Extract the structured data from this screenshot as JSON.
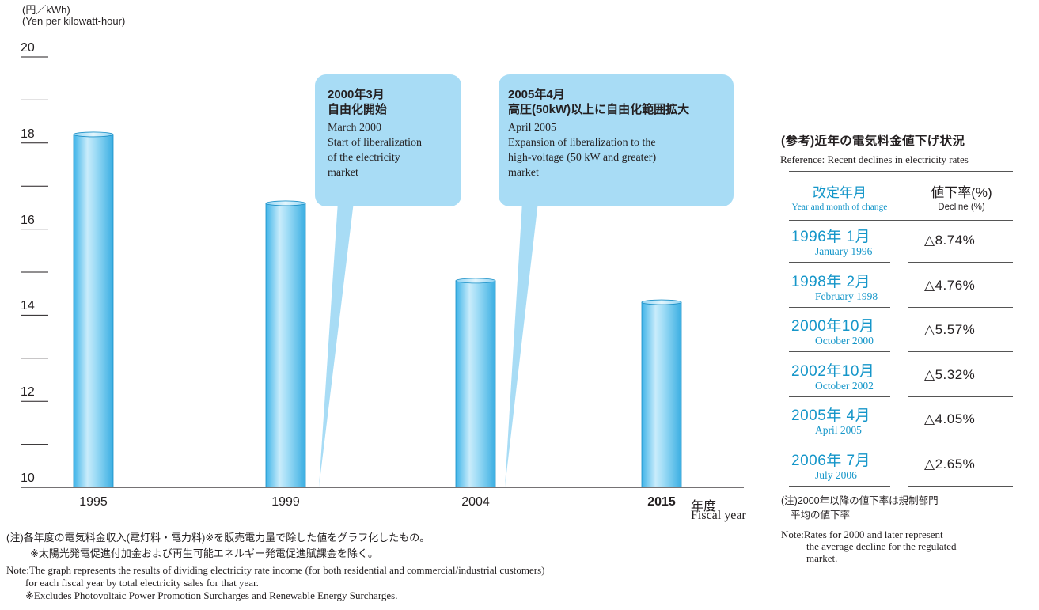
{
  "chart_data": {
    "type": "bar",
    "ylabel_jp": "(円／kWh)",
    "ylabel_en": "(Yen per kilowatt-hour)",
    "ylim": [
      10,
      20
    ],
    "yticks": [
      "20",
      "18",
      "16",
      "14",
      "12",
      "10"
    ],
    "categories": [
      "1995",
      "1999",
      "2004",
      "2015"
    ],
    "values": [
      18.2,
      16.6,
      14.8,
      14.3
    ],
    "xlabel_jp": "年度",
    "xlabel_en": "Fiscal year",
    "bar_color": "#5fc4ef",
    "callouts": [
      {
        "title_date": "2000年3月",
        "title_event": "自由化開始",
        "lines": [
          "March 2000",
          "Start of liberalization",
          "of the electricity",
          "market"
        ]
      },
      {
        "title_date": "2005年4月",
        "title_event": "高圧(50kW)以上に自由化範囲拡大",
        "lines": [
          "April 2005",
          "Expansion of liberalization to the",
          "high-voltage (50 kW and greater)",
          "market"
        ]
      }
    ]
  },
  "reference": {
    "title": "(参考)近年の電気料金値下げ状況",
    "subtitle": "Reference: Recent declines in electricity rates",
    "col1_jp": "改定年月",
    "col1_en": "Year and month of change",
    "col2_jp": "値下率(%)",
    "col2_en": "Decline (%)",
    "rows": [
      {
        "jp": "1996年  1月",
        "en": "January 1996",
        "value": "△8.74%"
      },
      {
        "jp": "1998年  2月",
        "en": "February 1998",
        "value": "△4.76%"
      },
      {
        "jp": "2000年10月",
        "en": "October 2000",
        "value": "△5.57%"
      },
      {
        "jp": "2002年10月",
        "en": "October 2002",
        "value": "△5.32%"
      },
      {
        "jp": "2005年  4月",
        "en": "April 2005",
        "value": "△4.05%"
      },
      {
        "jp": "2006年  7月",
        "en": "July 2006",
        "value": "△2.65%"
      }
    ],
    "note_jp_1": "(注)2000年以降の値下率は規制部門",
    "note_jp_2": "平均の値下率",
    "note_en_1": "Note:Rates for 2000 and later represent",
    "note_en_2": "the average decline for the regulated",
    "note_en_3": "market."
  },
  "notes": {
    "jp_1": "(注)各年度の電気料金収入(電灯料・電力料)※を販売電力量で除した値をグラフ化したもの。",
    "jp_2": "※太陽光発電促進付加金および再生可能エネルギー発電促進賦課金を除く。",
    "en_1": "Note:The graph represents the results of dividing electricity rate income (for both residential and commercial/industrial customers)",
    "en_2": "for each fiscal year by total electricity sales for that year.",
    "en_3": "※Excludes Photovoltaic Power Promotion Surcharges and Renewable Energy Surcharges."
  }
}
